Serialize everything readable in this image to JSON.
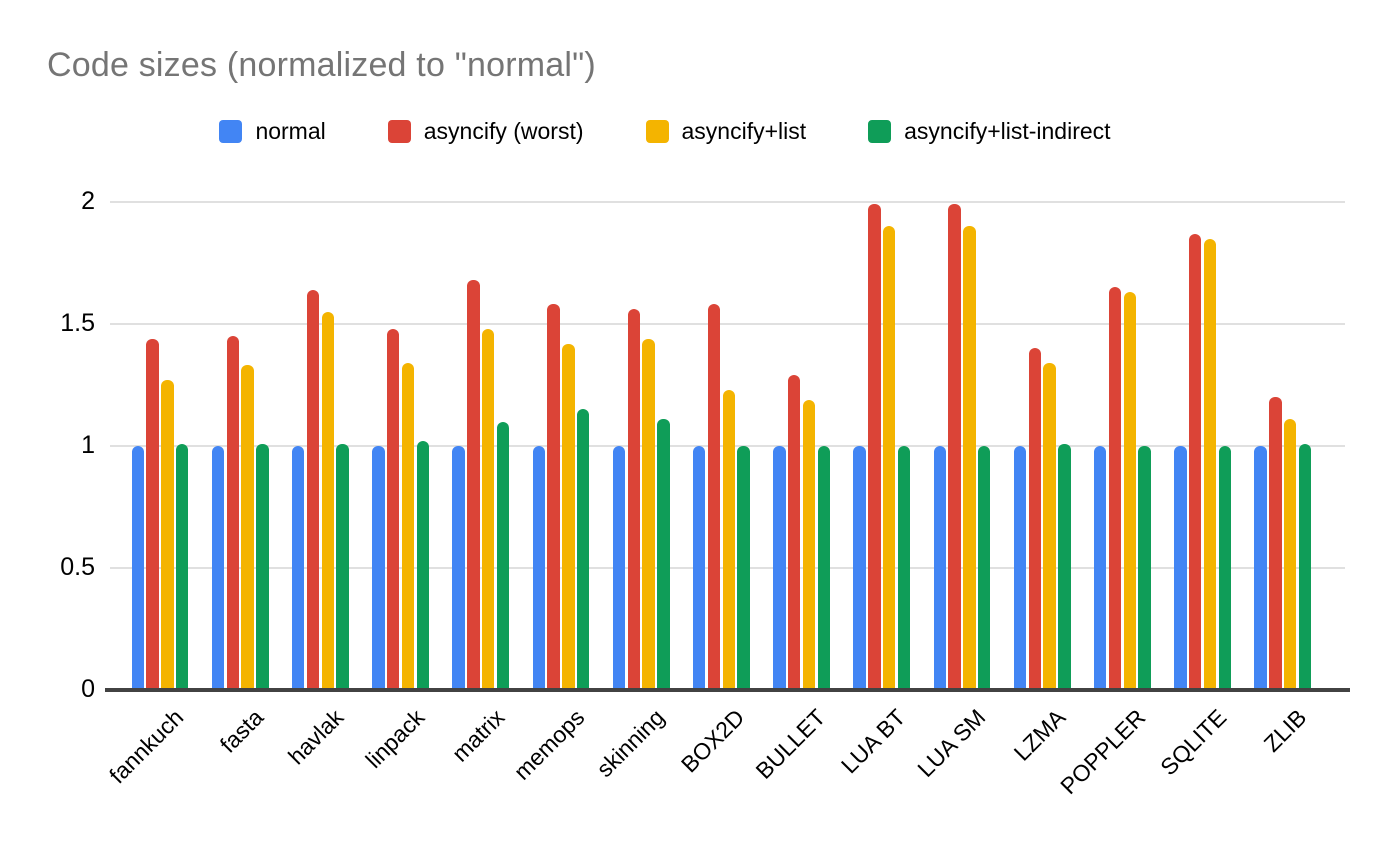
{
  "chart_data": {
    "type": "bar",
    "title": "Code sizes (normalized to \"normal\")",
    "xlabel": "",
    "ylabel": "",
    "ylim": [
      0,
      2
    ],
    "yticks": [
      0,
      0.5,
      1,
      1.5,
      2
    ],
    "ytick_labels": [
      "0",
      "0.5",
      "1",
      "1.5",
      "2"
    ],
    "grid": true,
    "legend_position": "top",
    "categories": [
      "fannkuch",
      "fasta",
      "havlak",
      "linpack",
      "matrix",
      "memops",
      "skinning",
      "BOX2D",
      "BULLET",
      "LUA BT",
      "LUA SM",
      "LZMA",
      "POPPLER",
      "SQLITE",
      "ZLIB"
    ],
    "series": [
      {
        "name": "normal",
        "color": "#4285F4",
        "values": [
          1.0,
          1.0,
          1.0,
          1.0,
          1.0,
          1.0,
          1.0,
          1.0,
          1.0,
          1.0,
          1.0,
          1.0,
          1.0,
          1.0,
          1.0
        ]
      },
      {
        "name": "asyncify (worst)",
        "color": "#DB4437",
        "values": [
          1.44,
          1.45,
          1.64,
          1.48,
          1.68,
          1.58,
          1.56,
          1.58,
          1.29,
          1.99,
          1.99,
          1.4,
          1.65,
          1.87,
          1.2
        ]
      },
      {
        "name": "asyncify+list",
        "color": "#F4B400",
        "values": [
          1.27,
          1.33,
          1.55,
          1.34,
          1.48,
          1.42,
          1.44,
          1.23,
          1.19,
          1.9,
          1.9,
          1.34,
          1.63,
          1.85,
          1.11
        ]
      },
      {
        "name": "asyncify+list-indirect",
        "color": "#0F9D58",
        "values": [
          1.01,
          1.01,
          1.01,
          1.02,
          1.1,
          1.15,
          1.11,
          1.0,
          1.0,
          1.0,
          1.0,
          1.01,
          1.0,
          1.0,
          1.01
        ]
      }
    ]
  },
  "style_colors": {
    "title_text": "#757575",
    "axis_text": "#000000",
    "gridline": "#E0E0E0",
    "axis_baseline": "#424242",
    "background": "#FFFFFF"
  }
}
